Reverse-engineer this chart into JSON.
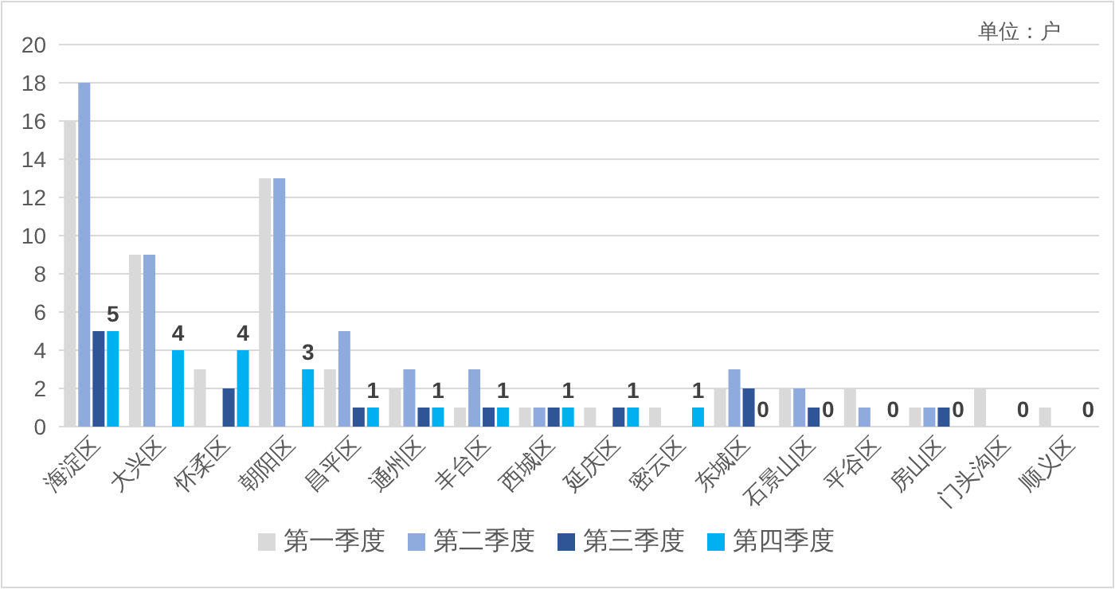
{
  "chart_data": {
    "type": "bar",
    "annotations": [
      "单位：户"
    ],
    "categories": [
      "海淀区",
      "大兴区",
      "怀柔区",
      "朝阳区",
      "昌平区",
      "通州区",
      "丰台区",
      "西城区",
      "延庆区",
      "密云区",
      "东城区",
      "石景山区",
      "平谷区",
      "房山区",
      "门头沟区",
      "顺义区"
    ],
    "series": [
      {
        "name": "第一季度",
        "color": "#d9d9d9",
        "values": [
          16,
          9,
          3,
          13,
          3,
          2,
          1,
          1,
          1,
          1,
          2,
          2,
          2,
          1,
          2,
          1
        ]
      },
      {
        "name": "第二季度",
        "color": "#8faadc",
        "values": [
          18,
          9,
          0,
          13,
          5,
          3,
          3,
          1,
          0,
          0,
          3,
          2,
          1,
          1,
          0,
          0
        ]
      },
      {
        "name": "第三季度",
        "color": "#2f5597",
        "values": [
          5,
          0,
          2,
          0,
          1,
          1,
          1,
          1,
          1,
          0,
          2,
          1,
          0,
          1,
          0,
          0
        ]
      },
      {
        "name": "第四季度",
        "color": "#00b0f0",
        "values": [
          5,
          4,
          4,
          3,
          1,
          1,
          1,
          1,
          1,
          1,
          0,
          0,
          0,
          0,
          0,
          0
        ],
        "value_labels": [
          "5",
          "4",
          "4",
          "3",
          "1",
          "1",
          "1",
          "1",
          "1",
          "1",
          "0",
          "0",
          "0",
          "0",
          "0",
          "0"
        ]
      }
    ],
    "ylim": [
      0,
      20
    ],
    "yticks": [
      0,
      2,
      4,
      6,
      8,
      10,
      12,
      14,
      16,
      18,
      20
    ],
    "grid": "y",
    "legend": "bottom"
  }
}
